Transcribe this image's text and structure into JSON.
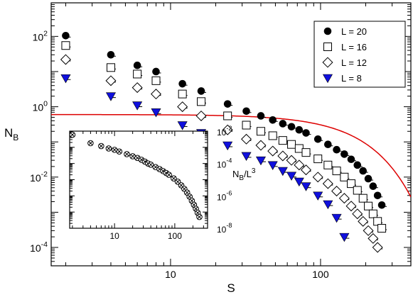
{
  "chart_data": [
    {
      "type": "scatter",
      "panel": "main",
      "xlabel": "S",
      "ylabel": "N_B",
      "xscale": "log",
      "yscale": "log",
      "xlim": [
        1.6,
        400
      ],
      "ylim": [
        3e-05,
        900
      ],
      "x_tick_labels": [
        {
          "v": 10,
          "t": "10"
        },
        {
          "v": 100,
          "t": "100"
        }
      ],
      "y_tick_labels": [
        {
          "v": 100,
          "b": "10",
          "e": "2"
        },
        {
          "v": 1,
          "b": "10",
          "e": "0"
        },
        {
          "v": 0.01,
          "b": "10",
          "e": "-2"
        },
        {
          "v": 0.0001,
          "b": "10",
          "e": "-4"
        }
      ],
      "legend_position": "top-right",
      "series": [
        {
          "name": "L = 20",
          "marker": "filled-circle",
          "color": "#000000",
          "points": [
            [
              2,
              105
            ],
            [
              4,
              30
            ],
            [
              6,
              15
            ],
            [
              8,
              10
            ],
            [
              12,
              4.5
            ],
            [
              16,
              2.8
            ],
            [
              24,
              1.2
            ],
            [
              32,
              0.75
            ],
            [
              40,
              0.55
            ],
            [
              48,
              0.42
            ],
            [
              56,
              0.33
            ],
            [
              64,
              0.27
            ],
            [
              72,
              0.22
            ],
            [
              80,
              0.18
            ],
            [
              96,
              0.12
            ],
            [
              112,
              0.085
            ],
            [
              128,
              0.06
            ],
            [
              144,
              0.045
            ],
            [
              160,
              0.032
            ],
            [
              176,
              0.022
            ],
            [
              192,
              0.015
            ],
            [
              208,
              0.009
            ],
            [
              224,
              0.0055
            ],
            [
              240,
              0.003
            ],
            [
              256,
              0.0016
            ]
          ]
        },
        {
          "name": "L = 16",
          "marker": "open-square",
          "color": "#000000",
          "points": [
            [
              2,
              55
            ],
            [
              4,
              13
            ],
            [
              6,
              8.5
            ],
            [
              8,
              5.5
            ],
            [
              12,
              2.3
            ],
            [
              16,
              1.4
            ],
            [
              24,
              0.55
            ],
            [
              32,
              0.3
            ],
            [
              40,
              0.2
            ],
            [
              48,
              0.15
            ],
            [
              56,
              0.11
            ],
            [
              64,
              0.085
            ],
            [
              72,
              0.065
            ],
            [
              80,
              0.05
            ],
            [
              96,
              0.033
            ],
            [
              112,
              0.022
            ],
            [
              128,
              0.015
            ],
            [
              144,
              0.01
            ],
            [
              160,
              0.0065
            ],
            [
              176,
              0.0042
            ],
            [
              192,
              0.0025
            ],
            [
              208,
              0.0015
            ],
            [
              224,
              0.0009
            ],
            [
              240,
              0.00055
            ],
            [
              256,
              0.00035
            ]
          ]
        },
        {
          "name": "L = 12",
          "marker": "open-diamond",
          "color": "#000000",
          "points": [
            [
              2,
              22
            ],
            [
              4,
              5.5
            ],
            [
              6,
              3.5
            ],
            [
              8,
              2.3
            ],
            [
              12,
              1.0
            ],
            [
              16,
              0.55
            ],
            [
              24,
              0.22
            ],
            [
              32,
              0.12
            ],
            [
              40,
              0.08
            ],
            [
              48,
              0.055
            ],
            [
              56,
              0.04
            ],
            [
              64,
              0.03
            ],
            [
              72,
              0.022
            ],
            [
              80,
              0.016
            ],
            [
              96,
              0.01
            ],
            [
              112,
              0.0065
            ],
            [
              128,
              0.004
            ],
            [
              144,
              0.0025
            ],
            [
              160,
              0.0015
            ],
            [
              176,
              0.0009
            ],
            [
              192,
              0.00055
            ],
            [
              208,
              0.0003
            ],
            [
              224,
              0.00018
            ],
            [
              240,
              0.0001
            ]
          ]
        },
        {
          "name": "L = 8",
          "marker": "filled-triangle-down",
          "color": "#1010dd",
          "points": [
            [
              2,
              6.5
            ],
            [
              4,
              2.0
            ],
            [
              6,
              1.1
            ],
            [
              8,
              0.7
            ],
            [
              12,
              0.3
            ],
            [
              16,
              0.18
            ],
            [
              24,
              0.08
            ],
            [
              32,
              0.04
            ],
            [
              40,
              0.03
            ],
            [
              48,
              0.022
            ],
            [
              56,
              0.015
            ],
            [
              64,
              0.011
            ],
            [
              72,
              0.0075
            ],
            [
              80,
              0.0055
            ],
            [
              96,
              0.003
            ],
            [
              112,
              0.0017
            ],
            [
              128,
              0.0007
            ],
            [
              144,
              0.0002
            ]
          ]
        }
      ],
      "fit_curve": {
        "color": "#dd0000",
        "a": 0.6,
        "s0": 130,
        "p": 1.5
      }
    },
    {
      "type": "scatter",
      "panel": "inset",
      "xlabel": "",
      "ylabel": "N_B/L^3",
      "xscale": "log",
      "yscale": "log",
      "xlim": [
        1.8,
        350
      ],
      "ylim": [
        1e-08,
        0.01
      ],
      "x_tick_labels": [
        {
          "v": 10,
          "t": "10"
        },
        {
          "v": 100,
          "t": "100"
        }
      ],
      "y_tick_labels": [
        {
          "v": 0.01,
          "b": "10",
          "e": "-2"
        },
        {
          "v": 0.0001,
          "b": "10",
          "e": "-4"
        },
        {
          "v": 1e-06,
          "b": "10",
          "e": "-6"
        },
        {
          "v": 1e-08,
          "b": "10",
          "e": "-8"
        }
      ],
      "points": [
        [
          2,
          0.006
        ],
        [
          4,
          0.0018
        ],
        [
          6,
          0.0012
        ],
        [
          8,
          0.00085
        ],
        [
          10,
          0.0007
        ],
        [
          12,
          0.00055
        ],
        [
          16,
          0.00038
        ],
        [
          20,
          0.00028
        ],
        [
          24,
          0.00022
        ],
        [
          28,
          0.00017
        ],
        [
          32,
          0.00013
        ],
        [
          36,
          0.0001
        ],
        [
          40,
          8.5e-05
        ],
        [
          48,
          6e-05
        ],
        [
          56,
          4.5e-05
        ],
        [
          64,
          3.4e-05
        ],
        [
          72,
          2.6e-05
        ],
        [
          80,
          2e-05
        ],
        [
          96,
          1.2e-05
        ],
        [
          112,
          7.5e-06
        ],
        [
          128,
          4.5e-06
        ],
        [
          144,
          2.7e-06
        ],
        [
          160,
          1.6e-06
        ],
        [
          176,
          9e-07
        ],
        [
          192,
          5e-07
        ],
        [
          208,
          2.8e-07
        ],
        [
          224,
          1.6e-07
        ],
        [
          240,
          9e-08
        ],
        [
          256,
          5e-08
        ]
      ]
    }
  ]
}
